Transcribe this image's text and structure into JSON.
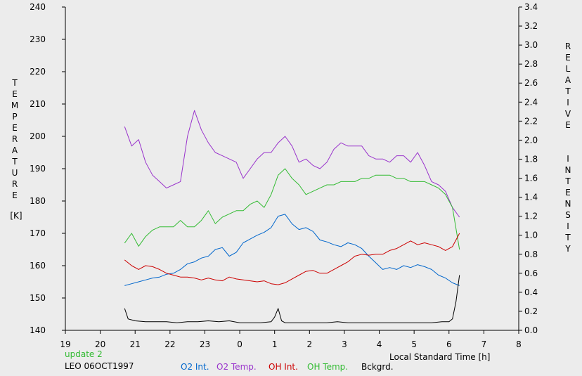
{
  "chart_data": {
    "type": "line",
    "y_left_label": "TEMPERATURE",
    "y_left_unit": "[K]",
    "y_right_label": "RELATIVE  INTENSITY",
    "xlabel": "Local Standard Time [h]",
    "xlim": [
      19,
      32
    ],
    "x_tick_labels": [
      "19",
      "20",
      "21",
      "22",
      "23",
      "0",
      "1",
      "2",
      "3",
      "4",
      "5",
      "6",
      "7",
      "8"
    ],
    "y_left_lim": [
      140,
      240
    ],
    "y_left_ticks": [
      "140",
      "150",
      "160",
      "170",
      "180",
      "190",
      "200",
      "210",
      "220",
      "230",
      "240"
    ],
    "y_right_lim": [
      0.0,
      3.4
    ],
    "y_right_ticks": [
      "0.0",
      "0.2",
      "0.4",
      "0.6",
      "0.8",
      "1.0",
      "1.2",
      "1.4",
      "1.6",
      "1.8",
      "2.0",
      "2.2",
      "2.4",
      "2.6",
      "2.8",
      "3.0",
      "3.2",
      "3.4"
    ],
    "grid": false,
    "series": [
      {
        "name": "O2 Temp.",
        "axis": "left",
        "color": "#9933CC",
        "x": [
          20.7,
          20.9,
          21.1,
          21.3,
          21.5,
          21.7,
          21.9,
          22.1,
          22.3,
          22.5,
          22.7,
          22.9,
          23.1,
          23.3,
          23.5,
          23.7,
          23.9,
          24.1,
          24.3,
          24.5,
          24.7,
          24.9,
          25.1,
          25.3,
          25.5,
          25.7,
          25.9,
          26.1,
          26.3,
          26.5,
          26.7,
          26.9,
          27.1,
          27.3,
          27.5,
          27.7,
          27.9,
          28.1,
          28.3,
          28.5,
          28.7,
          28.9,
          29.1,
          29.3,
          29.5,
          29.7,
          29.9,
          30.1,
          30.3
        ],
        "y": [
          203,
          197,
          199,
          192,
          188,
          186,
          184,
          185,
          186,
          200,
          208,
          202,
          198,
          195,
          194,
          193,
          192,
          187,
          190,
          193,
          195,
          195,
          198,
          200,
          197,
          192,
          193,
          191,
          190,
          192,
          196,
          198,
          197,
          197,
          197,
          194,
          193,
          193,
          192,
          194,
          194,
          192,
          195,
          191,
          186,
          185,
          183,
          178,
          175
        ]
      },
      {
        "name": "OH Temp.",
        "axis": "left",
        "color": "#33BB33",
        "x": [
          20.7,
          20.9,
          21.1,
          21.3,
          21.5,
          21.7,
          21.9,
          22.1,
          22.3,
          22.5,
          22.7,
          22.9,
          23.1,
          23.3,
          23.5,
          23.7,
          23.9,
          24.1,
          24.3,
          24.5,
          24.7,
          24.9,
          25.1,
          25.3,
          25.5,
          25.7,
          25.9,
          26.1,
          26.3,
          26.5,
          26.7,
          26.9,
          27.1,
          27.3,
          27.5,
          27.7,
          27.9,
          28.1,
          28.3,
          28.5,
          28.7,
          28.9,
          29.1,
          29.3,
          29.5,
          29.7,
          29.9,
          30.1,
          30.3
        ],
        "y": [
          167,
          170,
          166,
          169,
          171,
          172,
          172,
          172,
          174,
          172,
          172,
          174,
          177,
          173,
          175,
          176,
          177,
          177,
          179,
          180,
          178,
          182,
          188,
          190,
          187,
          185,
          182,
          183,
          184,
          185,
          185,
          186,
          186,
          186,
          187,
          187,
          188,
          188,
          188,
          187,
          187,
          186,
          186,
          186,
          185,
          184,
          182,
          178,
          165
        ]
      },
      {
        "name": "O2 Int.",
        "axis": "right",
        "color": "#0066CC",
        "x": [
          20.7,
          20.9,
          21.1,
          21.3,
          21.5,
          21.7,
          21.9,
          22.1,
          22.3,
          22.5,
          22.7,
          22.9,
          23.1,
          23.3,
          23.5,
          23.7,
          23.9,
          24.1,
          24.3,
          24.5,
          24.7,
          24.9,
          25.1,
          25.3,
          25.5,
          25.7,
          25.9,
          26.1,
          26.3,
          26.5,
          26.7,
          26.9,
          27.1,
          27.3,
          27.5,
          27.7,
          27.9,
          28.1,
          28.3,
          28.5,
          28.7,
          28.9,
          29.1,
          29.3,
          29.5,
          29.7,
          29.9,
          30.1,
          30.3
        ],
        "y": [
          0.47,
          0.49,
          0.51,
          0.53,
          0.55,
          0.56,
          0.59,
          0.6,
          0.64,
          0.7,
          0.72,
          0.76,
          0.78,
          0.85,
          0.87,
          0.78,
          0.82,
          0.92,
          0.96,
          1.0,
          1.03,
          1.08,
          1.2,
          1.22,
          1.12,
          1.06,
          1.08,
          1.04,
          0.95,
          0.93,
          0.9,
          0.88,
          0.92,
          0.9,
          0.86,
          0.78,
          0.71,
          0.64,
          0.66,
          0.64,
          0.68,
          0.66,
          0.69,
          0.67,
          0.64,
          0.58,
          0.55,
          0.5,
          0.47
        ]
      },
      {
        "name": "OH Int.",
        "axis": "right",
        "color": "#CC0000",
        "x": [
          20.7,
          20.9,
          21.1,
          21.3,
          21.5,
          21.7,
          21.9,
          22.1,
          22.3,
          22.5,
          22.7,
          22.9,
          23.1,
          23.3,
          23.5,
          23.7,
          23.9,
          24.1,
          24.3,
          24.5,
          24.7,
          24.9,
          25.1,
          25.3,
          25.5,
          25.7,
          25.9,
          26.1,
          26.3,
          26.5,
          26.7,
          26.9,
          27.1,
          27.3,
          27.5,
          27.7,
          27.9,
          28.1,
          28.3,
          28.5,
          28.7,
          28.9,
          29.1,
          29.3,
          29.5,
          29.7,
          29.9,
          30.1,
          30.3
        ],
        "y": [
          0.74,
          0.68,
          0.64,
          0.68,
          0.67,
          0.64,
          0.6,
          0.58,
          0.56,
          0.56,
          0.55,
          0.53,
          0.55,
          0.53,
          0.52,
          0.56,
          0.54,
          0.53,
          0.52,
          0.51,
          0.52,
          0.49,
          0.48,
          0.5,
          0.54,
          0.58,
          0.62,
          0.63,
          0.6,
          0.6,
          0.64,
          0.68,
          0.72,
          0.78,
          0.8,
          0.79,
          0.8,
          0.8,
          0.84,
          0.86,
          0.9,
          0.94,
          0.9,
          0.92,
          0.9,
          0.88,
          0.84,
          0.88,
          1.02
        ]
      },
      {
        "name": "Bckgrd.",
        "axis": "right",
        "color": "#000000",
        "x": [
          20.7,
          20.8,
          20.9,
          21.0,
          21.3,
          21.6,
          21.9,
          22.2,
          22.5,
          22.8,
          23.1,
          23.4,
          23.7,
          24.0,
          24.3,
          24.6,
          24.9,
          25.0,
          25.1,
          25.2,
          25.3,
          25.6,
          25.9,
          26.2,
          26.5,
          26.8,
          27.1,
          27.4,
          27.7,
          28.0,
          28.3,
          28.6,
          28.9,
          29.2,
          29.5,
          29.8,
          30.0,
          30.1,
          30.2,
          30.3
        ],
        "y": [
          0.23,
          0.12,
          0.11,
          0.1,
          0.09,
          0.09,
          0.09,
          0.08,
          0.09,
          0.09,
          0.1,
          0.09,
          0.1,
          0.08,
          0.08,
          0.08,
          0.09,
          0.14,
          0.23,
          0.1,
          0.08,
          0.08,
          0.08,
          0.08,
          0.08,
          0.09,
          0.08,
          0.08,
          0.08,
          0.08,
          0.08,
          0.08,
          0.08,
          0.08,
          0.08,
          0.09,
          0.09,
          0.12,
          0.3,
          0.58
        ]
      }
    ]
  },
  "info": {
    "update": "update 2",
    "station": "LEO 06OCT1997"
  },
  "colors": {
    "update": "#33BB33",
    "station": "#000000"
  }
}
